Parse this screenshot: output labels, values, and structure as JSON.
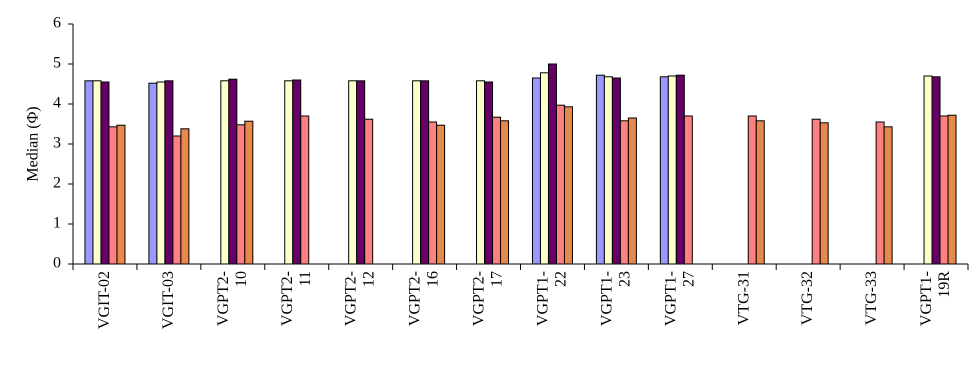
{
  "chart_data": {
    "type": "bar",
    "y_label": "Median (Φ)",
    "categories": [
      "VGIT-02",
      "VGIT-03",
      "VGPT2-10",
      "VGPT2-11",
      "VGPT2-12",
      "VGPT2-16",
      "VGPT2-17",
      "VGPT1-22",
      "VGPT1-23",
      "VGPT1-27",
      "VTG-31",
      "VTG-32",
      "VTG-33",
      "VGPT1-19R"
    ],
    "series": [
      {
        "color": "#9999ff",
        "values": [
          4.58,
          4.52,
          null,
          null,
          null,
          null,
          null,
          4.65,
          4.72,
          4.68,
          null,
          null,
          null,
          null
        ]
      },
      {
        "color": "#ffffcc",
        "values": [
          4.58,
          4.55,
          4.58,
          4.58,
          4.58,
          4.58,
          4.58,
          4.78,
          4.68,
          4.7,
          null,
          null,
          null,
          4.7
        ]
      },
      {
        "color": "#660066",
        "values": [
          4.55,
          4.58,
          4.62,
          4.6,
          4.58,
          4.58,
          4.55,
          5.0,
          4.65,
          4.72,
          null,
          null,
          null,
          4.68
        ]
      },
      {
        "color": "#ff8080",
        "values": [
          3.43,
          3.2,
          3.48,
          3.7,
          3.62,
          3.55,
          3.67,
          3.97,
          3.58,
          3.7,
          3.7,
          3.62,
          3.55,
          3.7
        ]
      },
      {
        "color": "#e8884a",
        "values": [
          3.47,
          3.38,
          3.57,
          null,
          null,
          3.47,
          3.58,
          3.93,
          3.65,
          null,
          3.58,
          3.53,
          3.43,
          3.72
        ]
      }
    ],
    "ylim": [
      0,
      6
    ],
    "yticks": [
      0,
      1,
      2,
      3,
      4,
      5,
      6
    ],
    "grid": false
  }
}
